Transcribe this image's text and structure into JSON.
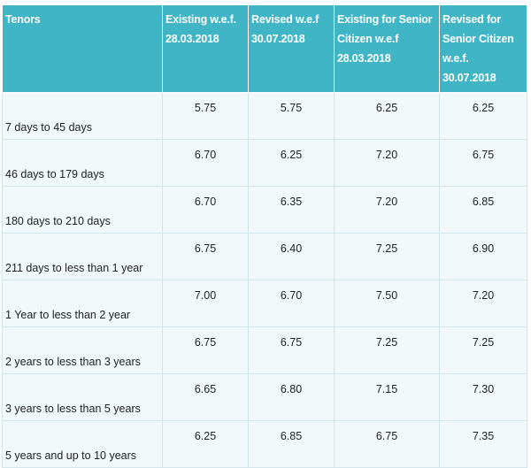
{
  "table": {
    "headers": [
      "Tenors",
      "Existing w.e.f. 28.03.2018",
      "Revised w.e.f 30.07.2018",
      "Existing for Senior Citizen w.e.f 28.03.2018",
      "Revised for Senior Citizen w.e.f. 30.07.2018"
    ],
    "rows": [
      [
        "7 days to 45 days",
        "5.75",
        "5.75",
        "6.25",
        "6.25"
      ],
      [
        "46 days to 179 days",
        "6.70",
        "6.25",
        "7.20",
        "6.75"
      ],
      [
        "180 days to 210 days",
        "6.70",
        "6.35",
        "7.20",
        "6.85"
      ],
      [
        "211 days to less than 1 year",
        "6.75",
        "6.40",
        "7.25",
        "6.90"
      ],
      [
        "1 Year to less than 2 year",
        "7.00",
        "6.70",
        "7.50",
        "7.20"
      ],
      [
        "2 years to less than 3 years",
        "6.75",
        "6.75",
        "7.25",
        "7.25"
      ],
      [
        "3 years to less than 5 years",
        "6.65",
        "6.80",
        "7.15",
        "7.30"
      ],
      [
        "5 years and up to 10 years",
        "6.25",
        "6.85",
        "6.75",
        "7.35"
      ]
    ]
  }
}
